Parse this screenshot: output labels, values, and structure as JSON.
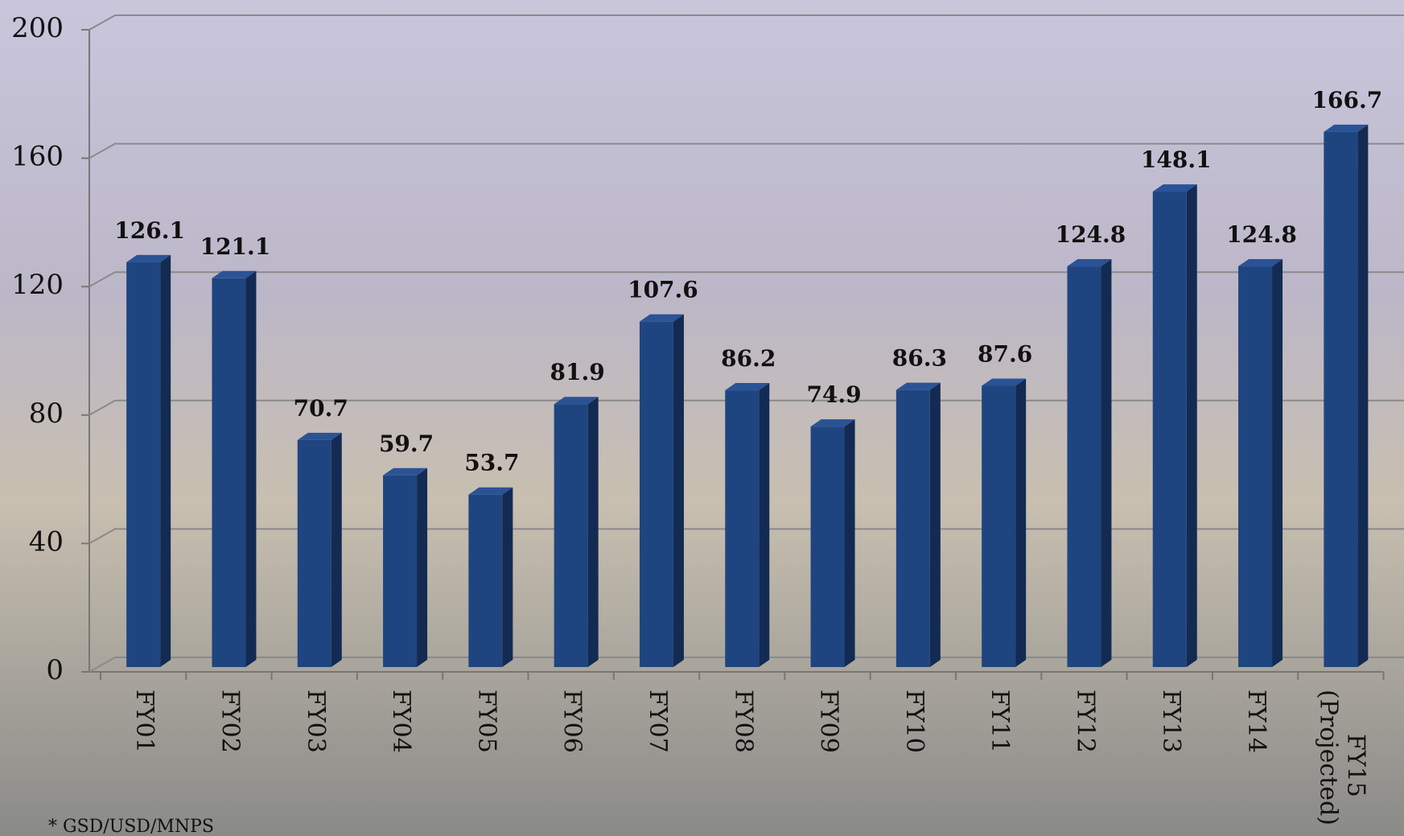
{
  "chart_data": {
    "type": "bar",
    "categories": [
      "FY01",
      "FY02",
      "FY03",
      "FY04",
      "FY05",
      "FY06",
      "FY07",
      "FY08",
      "FY09",
      "FY10",
      "FY11",
      "FY12",
      "FY13",
      "FY14",
      "FY15 (Projected)"
    ],
    "values": [
      126.1,
      121.1,
      70.7,
      59.7,
      53.7,
      81.9,
      107.6,
      86.2,
      74.9,
      86.3,
      87.6,
      124.8,
      148.1,
      124.8,
      166.7
    ],
    "color": "#1f4580",
    "ylim": [
      0,
      200
    ],
    "yticks": [
      0,
      40,
      80,
      120,
      160,
      200
    ],
    "grid": true,
    "footnote": "* GSD/USD/MNPS"
  }
}
